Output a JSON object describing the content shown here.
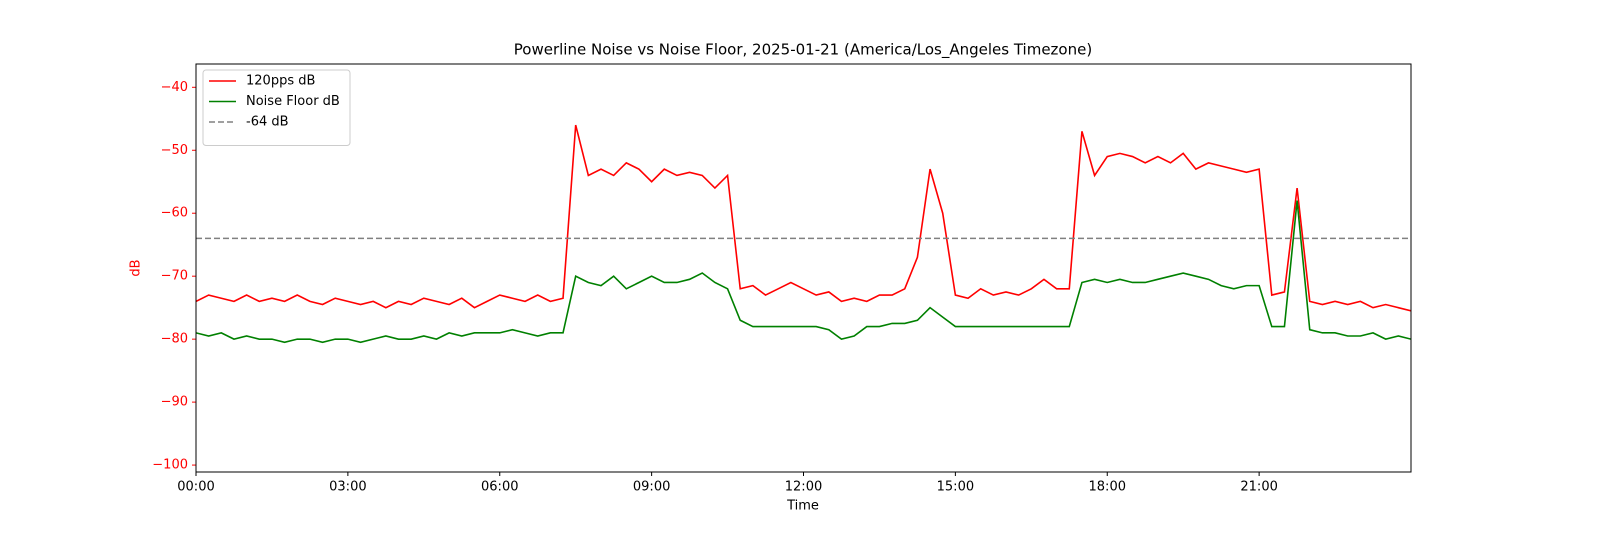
{
  "chart_data": {
    "type": "line",
    "title": "Powerline Noise vs Noise Floor, 2025-01-21 (America/Los_Angeles Timezone)",
    "xlabel": "Time",
    "ylabel": "dB",
    "ylabel_color": "#ff0000",
    "x": [
      0,
      0.25,
      0.5,
      0.75,
      1,
      1.25,
      1.5,
      1.75,
      2,
      2.25,
      2.5,
      2.75,
      3,
      3.25,
      3.5,
      3.75,
      4,
      4.25,
      4.5,
      4.75,
      5,
      5.25,
      5.5,
      5.75,
      6,
      6.25,
      6.5,
      6.75,
      7,
      7.25,
      7.5,
      7.75,
      8,
      8.25,
      8.5,
      8.75,
      9,
      9.25,
      9.5,
      9.75,
      10,
      10.25,
      10.5,
      10.75,
      11,
      11.25,
      11.5,
      11.75,
      12,
      12.25,
      12.5,
      12.75,
      13,
      13.25,
      13.5,
      13.75,
      14,
      14.25,
      14.5,
      14.75,
      15,
      15.25,
      15.5,
      15.75,
      16,
      16.25,
      16.5,
      16.75,
      17,
      17.25,
      17.5,
      17.75,
      18,
      18.25,
      18.5,
      18.75,
      19,
      19.25,
      19.5,
      19.75,
      20,
      20.25,
      20.5,
      20.75,
      21,
      21.25,
      21.5,
      21.75,
      22,
      22.25,
      22.5,
      22.75,
      23,
      23.25,
      23.5,
      23.75,
      24
    ],
    "series": [
      {
        "name": "120pps dB",
        "color": "#ff0000",
        "values": [
          -74,
          -73,
          -73.5,
          -74,
          -73,
          -74,
          -73.5,
          -74,
          -73,
          -74,
          -74.5,
          -73.5,
          -74,
          -74.5,
          -74,
          -75,
          -74,
          -74.5,
          -73.5,
          -74,
          -74.5,
          -73.5,
          -75,
          -74,
          -73,
          -73.5,
          -74,
          -73,
          -74,
          -73.5,
          -46,
          -54,
          -53,
          -54,
          -52,
          -53,
          -55,
          -53,
          -54,
          -53.5,
          -54,
          -56,
          -54,
          -72,
          -71.5,
          -73,
          -72,
          -71,
          -72,
          -73,
          -72.5,
          -74,
          -73.5,
          -74,
          -73,
          -73,
          -72,
          -67,
          -53,
          -60,
          -73,
          -73.5,
          -72,
          -73,
          -72.5,
          -73,
          -72,
          -70.5,
          -72,
          -72,
          -47,
          -54,
          -51,
          -50.5,
          -51,
          -52,
          -51,
          -52,
          -50.5,
          -53,
          -52,
          -52.5,
          -53,
          -53.5,
          -53,
          -73,
          -72.5,
          -56,
          -74,
          -74.5,
          -74,
          -74.5,
          -74,
          -75,
          -74.5,
          -75,
          -75.5
        ]
      },
      {
        "name": "Noise Floor dB",
        "color": "#008000",
        "values": [
          -79,
          -79.5,
          -79,
          -80,
          -79.5,
          -80,
          -80,
          -80.5,
          -80,
          -80,
          -80.5,
          -80,
          -80,
          -80.5,
          -80,
          -79.5,
          -80,
          -80,
          -79.5,
          -80,
          -79,
          -79.5,
          -79,
          -79,
          -79,
          -78.5,
          -79,
          -79.5,
          -79,
          -79,
          -70,
          -71,
          -71.5,
          -70,
          -72,
          -71,
          -70,
          -71,
          -71,
          -70.5,
          -69.5,
          -71,
          -72,
          -77,
          -78,
          -78,
          -78,
          -78,
          -78,
          -78,
          -78.5,
          -80,
          -79.5,
          -78,
          -78,
          -77.5,
          -77.5,
          -77,
          -75,
          -76.5,
          -78,
          -78,
          -78,
          -78,
          -78,
          -78,
          -78,
          -78,
          -78,
          -78,
          -71,
          -70.5,
          -71,
          -70.5,
          -71,
          -71,
          -70.5,
          -70,
          -69.5,
          -70,
          -70.5,
          -71.5,
          -72,
          -71.5,
          -71.5,
          -78,
          -78,
          -58,
          -78.5,
          -79,
          -79,
          -79.5,
          -79.5,
          -79,
          -80,
          -79.5,
          -80
        ]
      }
    ],
    "hlines": [
      {
        "name": "-64 dB",
        "value": -64,
        "color": "#808080",
        "dash": true
      }
    ],
    "xlim": [
      0,
      24
    ],
    "ylim": [
      -101.1,
      -36.3
    ],
    "xticks": [
      {
        "value": 0,
        "label": "00:00"
      },
      {
        "value": 3,
        "label": "03:00"
      },
      {
        "value": 6,
        "label": "06:00"
      },
      {
        "value": 9,
        "label": "09:00"
      },
      {
        "value": 12,
        "label": "12:00"
      },
      {
        "value": 15,
        "label": "15:00"
      },
      {
        "value": 18,
        "label": "18:00"
      },
      {
        "value": 21,
        "label": "21:00"
      }
    ],
    "yticks": [
      {
        "value": -40,
        "label": "−40"
      },
      {
        "value": -50,
        "label": "−50"
      },
      {
        "value": -60,
        "label": "−60"
      },
      {
        "value": -70,
        "label": "−70"
      },
      {
        "value": -80,
        "label": "−80"
      },
      {
        "value": -90,
        "label": "−90"
      },
      {
        "value": -100,
        "label": "−100"
      }
    ],
    "ytick_color": "#ff0000",
    "legend": "upper left"
  }
}
